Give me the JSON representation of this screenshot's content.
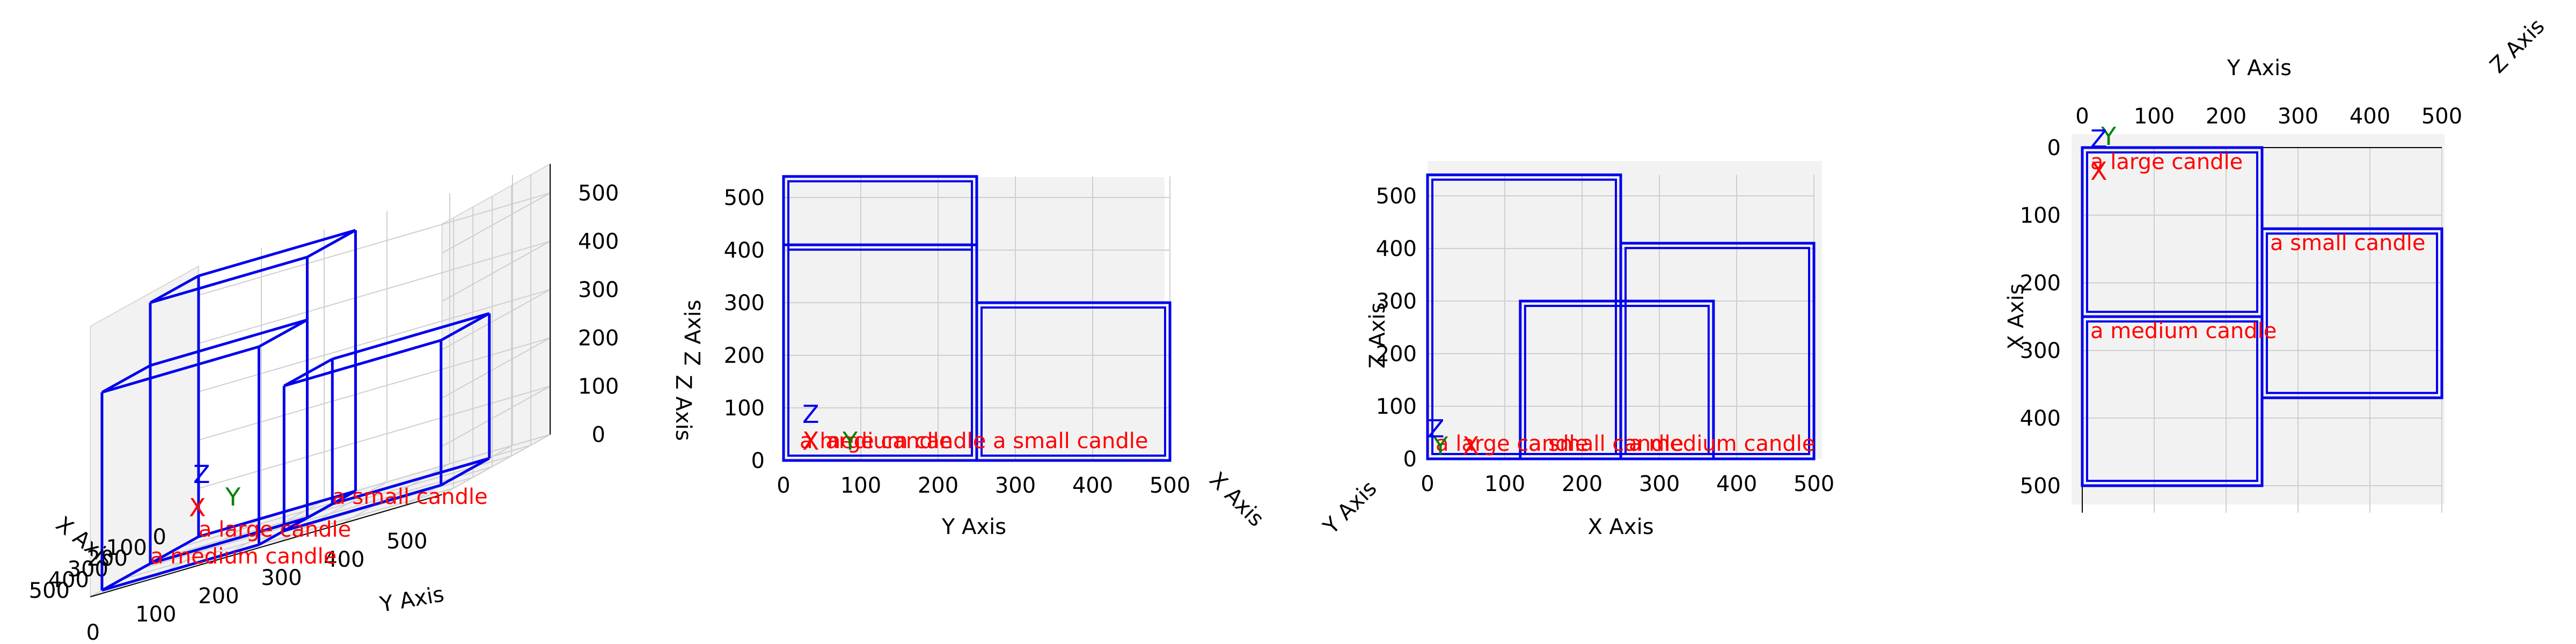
{
  "colors": {
    "box": "#0000ee",
    "label": "#ff0000",
    "axis_x": "#ff0000",
    "axis_y": "#008000",
    "axis_z": "#0000ee",
    "pane": "#f2f2f2",
    "grid": "#cfcfcf",
    "text": "#000000"
  },
  "boxes": [
    {
      "label": "a large candle",
      "x": [
        0,
        250
      ],
      "y": [
        0,
        250
      ],
      "z": [
        0,
        540
      ]
    },
    {
      "label": "a small candle",
      "x": [
        120,
        370
      ],
      "y": [
        250,
        500
      ],
      "z": [
        0,
        300
      ]
    },
    {
      "label": "a medium candle",
      "x": [
        250,
        500
      ],
      "y": [
        0,
        250
      ],
      "z": [
        0,
        410
      ]
    }
  ],
  "axis_letters": {
    "x": "X",
    "y": "Y",
    "z": "Z"
  },
  "views": [
    {
      "id": "perspective",
      "xlabel": "X Axis",
      "ylabel": "Y Axis",
      "zlabel": "Z Axis",
      "x_ticks": [
        "0",
        "100",
        "200",
        "300",
        "400",
        "500"
      ],
      "y_ticks": [
        "0",
        "100",
        "200",
        "300",
        "400",
        "500"
      ],
      "z_ticks": [
        "0",
        "100",
        "200",
        "300",
        "400",
        "500"
      ]
    },
    {
      "id": "front-yz",
      "xlabel": "X Axis",
      "ylabel": "Y Axis",
      "zlabel": "Z Axis",
      "x_ticks": [
        "0",
        "100",
        "200",
        "300",
        "400",
        "500"
      ],
      "y_ticks": [
        "0",
        "100",
        "200",
        "300",
        "400",
        "500"
      ],
      "z_ticks": [
        "0",
        "100",
        "200",
        "300",
        "400",
        "500"
      ]
    },
    {
      "id": "side-xz",
      "xlabel": "X Axis",
      "ylabel": "Y Axis",
      "zlabel": "Z Axis",
      "x_ticks": [
        "0",
        "100",
        "200",
        "300",
        "400",
        "500"
      ],
      "y_ticks": [
        "0",
        "100",
        "200",
        "300",
        "400",
        "500"
      ],
      "z_ticks": [
        "0",
        "100",
        "200",
        "300",
        "400",
        "500"
      ]
    },
    {
      "id": "top-xy",
      "xlabel": "X Axis",
      "ylabel": "Y Axis",
      "zlabel": "Z Axis",
      "x_ticks": [
        "0",
        "100",
        "200",
        "300",
        "400",
        "500"
      ],
      "y_ticks": [
        "0",
        "100",
        "200",
        "300",
        "400",
        "500"
      ],
      "z_ticks": [
        "0",
        "100",
        "200",
        "300",
        "400",
        "500"
      ]
    }
  ]
}
